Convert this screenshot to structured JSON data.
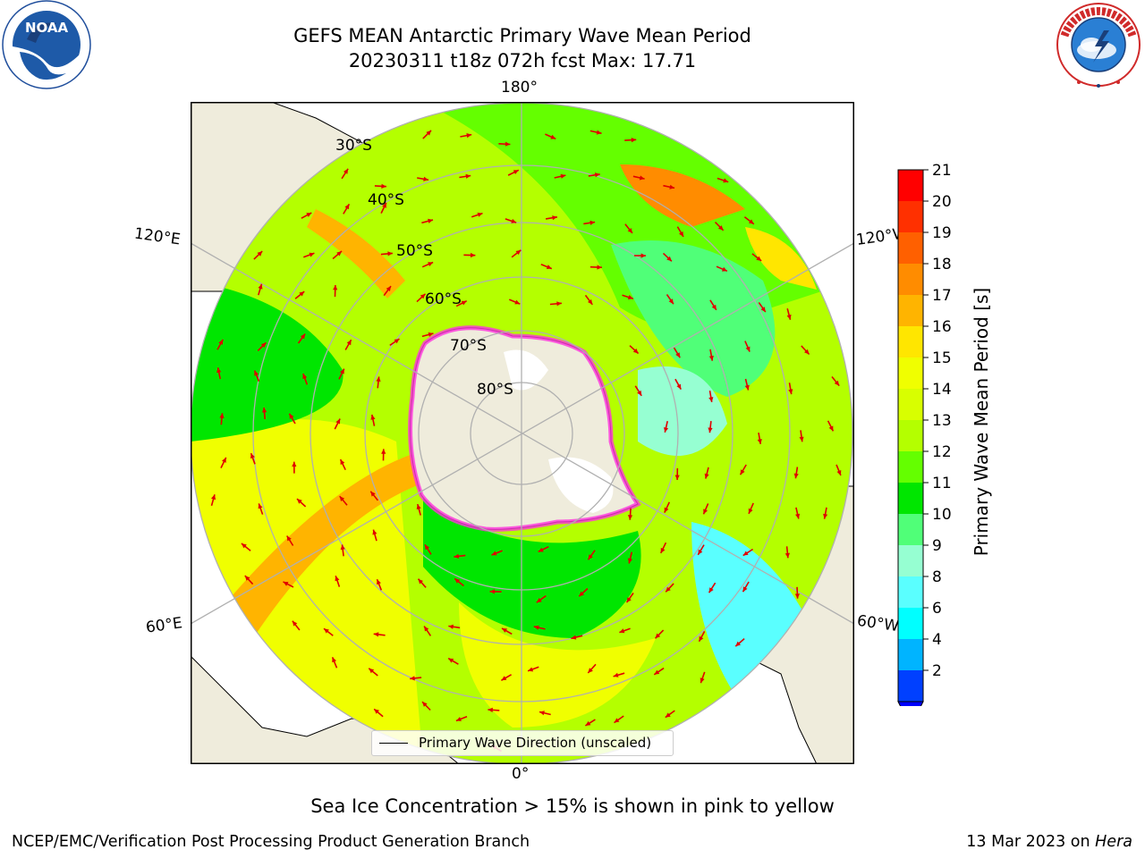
{
  "title": {
    "line1": "GEFS MEAN Antarctic Primary Wave Mean Period",
    "line2": "20230311 t18z 072h fcst   Max: 17.71"
  },
  "logos": {
    "left": "noaa-logo",
    "right": "national-weather-service-logo"
  },
  "map": {
    "projection": "south-polar-stereographic",
    "longitude_labels": {
      "top": "180°",
      "bottom": "0°",
      "upper_left": "120°E",
      "upper_right": "120°W",
      "lower_left": "60°E",
      "lower_right": "60°W"
    },
    "latitude_labels": [
      "30°S",
      "40°S",
      "50°S",
      "60°S",
      "70°S",
      "80°S"
    ],
    "legend_label": "Primary Wave Direction (unscaled)"
  },
  "colorbar": {
    "label": "Primary Wave Mean Period [s]",
    "ticks": [
      "21",
      "20",
      "19",
      "18",
      "17",
      "16",
      "15",
      "14",
      "13",
      "12",
      "11",
      "10",
      "9",
      "8",
      "6",
      "4",
      "2"
    ],
    "colors": [
      "#ff0000",
      "#ff3000",
      "#ff6000",
      "#ff8c00",
      "#ffb400",
      "#ffe600",
      "#f0ff00",
      "#d8ff00",
      "#b4ff00",
      "#64ff00",
      "#00e600",
      "#50ff78",
      "#96ffd2",
      "#5affff",
      "#00ffff",
      "#00b4ff",
      "#0040ff"
    ],
    "extend_color": "#0000ff"
  },
  "caption": "Sea Ice Concentration > 15% is shown in pink to yellow",
  "footer": {
    "left": "NCEP/EMC/Verification Post Processing Product Generation Branch",
    "date": "13 Mar 2023 on ",
    "machine": "Hera"
  }
}
